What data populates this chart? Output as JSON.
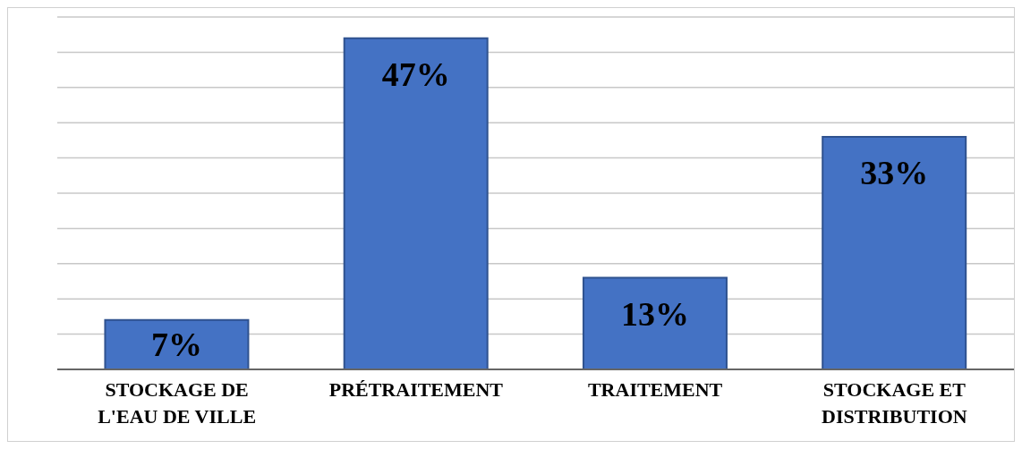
{
  "chart_data": {
    "type": "bar",
    "categories": [
      "STOCKAGE DE L'EAU DE VILLE",
      "PRÉTRAITEMENT",
      "TRAITEMENT",
      "STOCKAGE ET DISTRIBUTION"
    ],
    "values": [
      7,
      47,
      13,
      33
    ],
    "value_labels": [
      "7%",
      "47%",
      "13%",
      "33%"
    ],
    "color": "#4472c4",
    "ylim": [
      0,
      50
    ],
    "yticks": [
      {
        "value": 0,
        "label": null
      },
      {
        "value": 5,
        "label": null
      },
      {
        "value": 10,
        "label": null
      },
      {
        "value": 15,
        "label": null
      },
      {
        "value": 20,
        "label": null
      },
      {
        "value": 25,
        "label": null
      },
      {
        "value": 30,
        "label": null
      },
      {
        "value": 35,
        "label": null
      },
      {
        "value": 40,
        "label": null
      },
      {
        "value": 45,
        "label": null
      },
      {
        "value": 50,
        "label": null
      }
    ],
    "grid": "y",
    "tick_labels": "x",
    "legend": false
  }
}
